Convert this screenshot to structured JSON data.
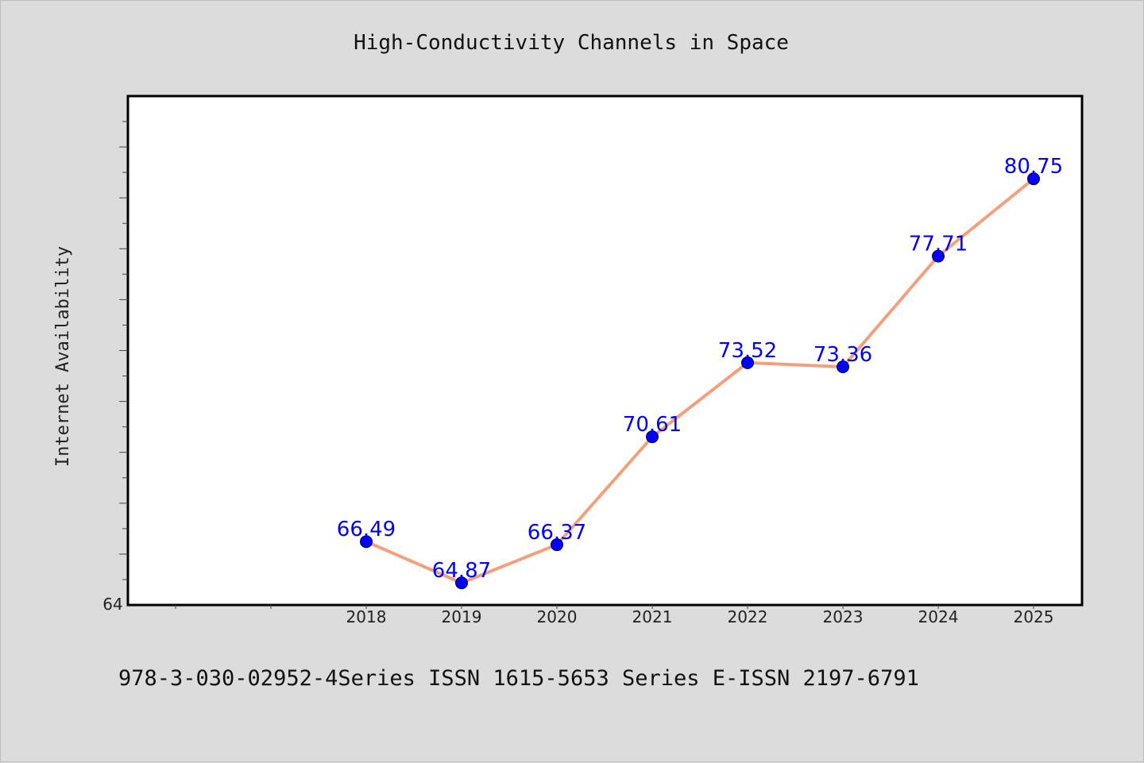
{
  "chart_data": {
    "type": "line",
    "title": "High-Conductivity Channels in Space",
    "xlabel": "",
    "ylabel": "Internet Availability",
    "categories": [
      "2018",
      "2019",
      "2020",
      "2021",
      "2022",
      "2023",
      "2024",
      "2025"
    ],
    "series": [
      {
        "values": [
          66.49,
          64.87,
          66.37,
          70.61,
          73.52,
          73.36,
          77.71,
          80.75
        ]
      }
    ],
    "data_labels": [
      "66.49",
      "64.87",
      "66.37",
      "70.61",
      "73.52",
      "73.36",
      "77.71",
      "80.75"
    ],
    "ylim": [
      64,
      84
    ],
    "y_tick_labels": [
      "64"
    ],
    "line_color": "#f4a07c",
    "marker_color": "#0000ff",
    "label_color": "#0000ff",
    "grid": false,
    "legend": "none"
  },
  "footer_text": "978-3-030-02952-4Series ISSN 1615-5653 Series E-ISSN 2197-6791"
}
